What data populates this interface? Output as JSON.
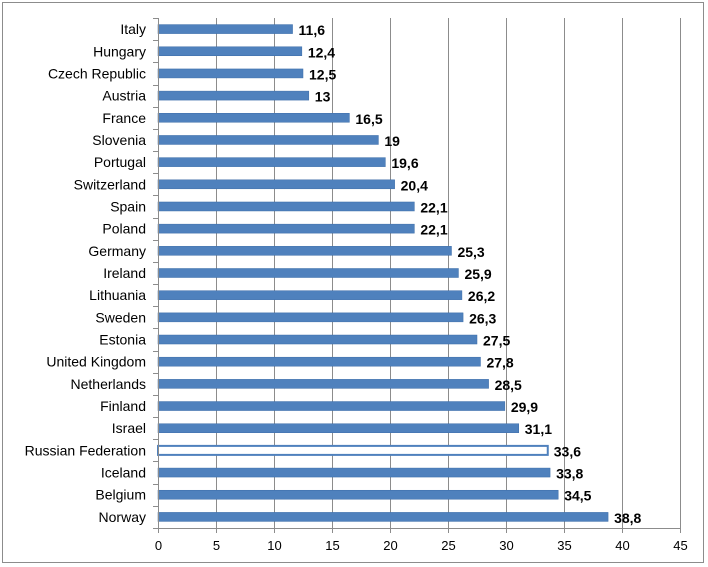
{
  "colors": {
    "bar": "#4f81bd",
    "bar_edge": "#3b6ca8",
    "gridline": "#8c8c8c",
    "axis": "#8c8c8c",
    "highlight_fill": "#ffffff"
  },
  "chart_data": {
    "type": "bar",
    "orientation": "horizontal",
    "title": "",
    "xlabel": "",
    "ylabel": "",
    "xlim": [
      0,
      45
    ],
    "x_ticks": [
      0,
      5,
      10,
      15,
      20,
      25,
      30,
      35,
      40,
      45
    ],
    "grid": "vertical",
    "legend": "none",
    "highlighted_category": "Russian Federation",
    "categories": [
      "Italy",
      "Hungary",
      "Czech Republic",
      "Austria",
      "France",
      "Slovenia",
      "Portugal",
      "Switzerland",
      "Spain",
      "Poland",
      "Germany",
      "Ireland",
      "Lithuania",
      "Sweden",
      "Estonia",
      "United Kingdom",
      "Netherlands",
      "Finland",
      "Israel",
      "Russian Federation",
      "Iceland",
      "Belgium",
      "Norway"
    ],
    "values": [
      11.6,
      12.4,
      12.5,
      13,
      16.5,
      19,
      19.6,
      20.4,
      22.1,
      22.1,
      25.3,
      25.9,
      26.2,
      26.3,
      27.5,
      27.8,
      28.5,
      29.9,
      31.1,
      33.6,
      33.8,
      34.5,
      38.8
    ],
    "value_labels": [
      "11,6",
      "12,4",
      "12,5",
      "13",
      "16,5",
      "19",
      "19,6",
      "20,4",
      "22,1",
      "22,1",
      "25,3",
      "25,9",
      "26,2",
      "26,3",
      "27,5",
      "27,8",
      "28,5",
      "29,9",
      "31,1",
      "33,6",
      "33,8",
      "34,5",
      "38,8"
    ]
  }
}
